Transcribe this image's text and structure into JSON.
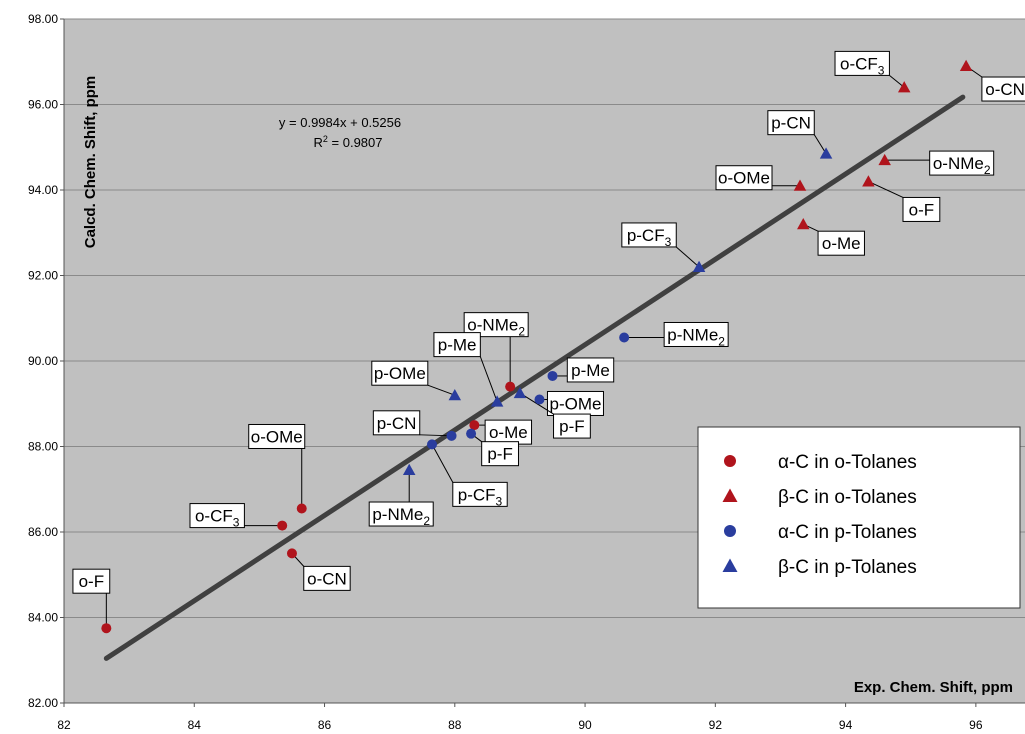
{
  "chart_data": {
    "type": "scatter",
    "title": "",
    "xlabel": "Exp. Chem. Shift, ppm",
    "ylabel": "Calcd. Chem. Shift, ppm",
    "xlim": [
      82,
      97
    ],
    "ylim": [
      82,
      98
    ],
    "x_ticks": [
      "82",
      "84",
      "86",
      "88",
      "90",
      "92",
      "94",
      "96"
    ],
    "y_ticks": [
      "82.00",
      "84.00",
      "86.00",
      "88.00",
      "90.00",
      "92.00",
      "94.00",
      "96.00",
      "98.00"
    ],
    "grid": "horizontal",
    "plot_background": "#c0c0c0",
    "legend_position": "bottom-right",
    "fit_line": {
      "equation": "y = 0.9984x + 0.5256",
      "r_squared_label": "R",
      "r_squared_sup": "2",
      "r_squared_value": " = 0.9807",
      "slope": 0.9984,
      "intercept": 0.5256,
      "x_range": [
        82.65,
        95.8
      ],
      "color": "#404040"
    },
    "series": [
      {
        "name_prefix": "α-C in o-Tolanes",
        "color": "#b0141c",
        "marker": "circle",
        "points": [
          {
            "label": "o-F",
            "x": 82.65,
            "y": 83.75
          },
          {
            "label": "o-CF",
            "label_sub": "3",
            "x": 85.35,
            "y": 86.15
          },
          {
            "label": "o-OMe",
            "x": 85.65,
            "y": 86.55
          },
          {
            "label": "o-CN",
            "x": 85.5,
            "y": 85.5
          },
          {
            "label": "o-NMe",
            "label_sub": "2",
            "x": 88.85,
            "y": 89.4
          },
          {
            "label": "o-Me",
            "x": 88.3,
            "y": 88.5
          }
        ]
      },
      {
        "name_prefix": "β-C in o-Tolanes",
        "color": "#b0141c",
        "marker": "triangle",
        "points": [
          {
            "label": "o-CF",
            "label_sub": "3",
            "x": 94.9,
            "y": 96.4
          },
          {
            "label": "o-CN",
            "x": 95.85,
            "y": 96.9
          },
          {
            "label": "o-OMe",
            "x": 93.3,
            "y": 94.1
          },
          {
            "label": "o-Me",
            "x": 93.35,
            "y": 93.2
          },
          {
            "label": "o-NMe",
            "label_sub": "2",
            "x": 94.6,
            "y": 94.7
          },
          {
            "label": "o-F",
            "x": 94.35,
            "y": 94.2
          }
        ]
      },
      {
        "name_prefix": "α-C in p-Tolanes",
        "color": "#2a3d9e",
        "marker": "circle",
        "points": [
          {
            "label": "p-NMe",
            "label_sub": "2",
            "x": 90.6,
            "y": 90.55
          },
          {
            "label": "p-Me",
            "x": 89.5,
            "y": 89.65
          },
          {
            "label": "p-OMe",
            "x": 89.3,
            "y": 89.1
          },
          {
            "label": "p-CN",
            "x": 87.95,
            "y": 88.25
          },
          {
            "label": "p-F",
            "x": 88.25,
            "y": 88.3
          },
          {
            "label": "p-CF",
            "label_sub": "3",
            "x": 87.65,
            "y": 88.05
          }
        ]
      },
      {
        "name_prefix": "β-C in p-Tolanes",
        "color": "#2a3d9e",
        "marker": "triangle",
        "points": [
          {
            "label": "p-CN",
            "x": 93.7,
            "y": 94.85
          },
          {
            "label": "p-CF",
            "label_sub": "3",
            "x": 91.75,
            "y": 92.2
          },
          {
            "label": "p-OMe",
            "x": 88.0,
            "y": 89.2
          },
          {
            "label": "p-Me",
            "x": 88.65,
            "y": 89.05
          },
          {
            "label": "p-F",
            "x": 89.0,
            "y": 89.25
          },
          {
            "label": "p-NMe",
            "label_sub": "2",
            "x": 87.3,
            "y": 87.45
          }
        ]
      }
    ]
  }
}
